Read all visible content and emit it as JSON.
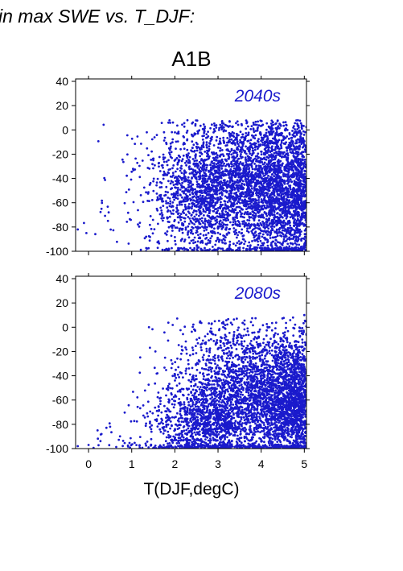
{
  "page": {
    "heading": "in max SWE vs. T_DJF:"
  },
  "chart_data": {
    "type": "scatter",
    "title": "A1B",
    "xlabel": "T(DJF,degC)",
    "ylabel": "",
    "xlim": [
      -0.3,
      5.05
    ],
    "ylim": [
      -100,
      42
    ],
    "x_ticks": [
      0,
      1,
      2,
      3,
      4,
      5
    ],
    "y_ticks": [
      -100,
      -80,
      -60,
      -40,
      -20,
      0,
      20,
      40
    ],
    "grid": false,
    "point_color": "#1a1acc",
    "panels": [
      {
        "label": "2040s",
        "clusters": [
          {
            "cx": 3.7,
            "cy": -45,
            "sx": 0.9,
            "sy": 30,
            "n": 2600
          },
          {
            "cx": 4.5,
            "cy": -55,
            "sx": 0.45,
            "sy": 28,
            "n": 1100
          },
          {
            "cx": 2.6,
            "cy": -55,
            "sx": 0.45,
            "sy": 22,
            "n": 650
          },
          {
            "cx": 1.7,
            "cy": -50,
            "sx": 0.5,
            "sy": 30,
            "n": 120
          },
          {
            "cx": 0.6,
            "cy": -75,
            "sx": 0.6,
            "sy": 15,
            "n": 18
          }
        ],
        "tail_points": [
          [
            -0.25,
            -82
          ],
          [
            -0.05,
            -85
          ],
          [
            0.3,
            -65
          ],
          [
            0.45,
            -75
          ],
          [
            1.35,
            -2
          ],
          [
            1.5,
            -25
          ],
          [
            1.9,
            -15
          ]
        ]
      },
      {
        "label": "2080s",
        "clusters": [
          {
            "cx": 3.8,
            "cy": -55,
            "sx": 0.85,
            "sy": 28,
            "n": 2600
          },
          {
            "cx": 4.6,
            "cy": -60,
            "sx": 0.35,
            "sy": 25,
            "n": 1000
          },
          {
            "cx": 2.7,
            "cy": -80,
            "sx": 0.45,
            "sy": 15,
            "n": 700
          },
          {
            "cx": 1.8,
            "cy": -80,
            "sx": 0.45,
            "sy": 20,
            "n": 160
          },
          {
            "cx": 0.9,
            "cy": -92,
            "sx": 0.5,
            "sy": 7,
            "n": 25
          }
        ],
        "tail_points": [
          [
            -0.25,
            -98
          ],
          [
            0.0,
            -97
          ],
          [
            0.3,
            -88
          ],
          [
            0.5,
            -82
          ],
          [
            1.4,
            0
          ],
          [
            1.55,
            -20
          ],
          [
            2.0,
            -40
          ],
          [
            5.0,
            10
          ]
        ]
      }
    ]
  }
}
